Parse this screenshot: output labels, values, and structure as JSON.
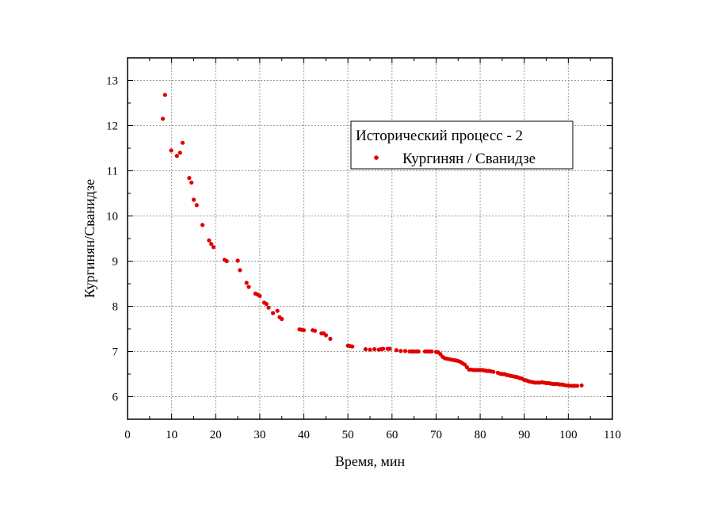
{
  "chart_data": {
    "type": "scatter",
    "title": "",
    "xlabel": "Время, мин",
    "ylabel": "Кургинян/Сванидзе",
    "xlim": [
      0,
      110
    ],
    "ylim": [
      5.5,
      13.5
    ],
    "x_ticks": [
      0,
      10,
      20,
      30,
      40,
      50,
      60,
      70,
      80,
      90,
      100,
      110
    ],
    "y_ticks": [
      6,
      7,
      8,
      9,
      10,
      11,
      12,
      13
    ],
    "grid": true,
    "legend_position": "top-right",
    "legend_title": "Исторический процесс - 2",
    "marker_color": "#e00000",
    "series": [
      {
        "name": "Кургинян / Сванидзе",
        "points": [
          [
            8.0,
            12.15
          ],
          [
            8.5,
            12.68
          ],
          [
            9.9,
            11.45
          ],
          [
            11.2,
            11.33
          ],
          [
            11.9,
            11.4
          ],
          [
            12.5,
            11.62
          ],
          [
            14.0,
            10.84
          ],
          [
            14.5,
            10.74
          ],
          [
            15.0,
            10.36
          ],
          [
            15.7,
            10.24
          ],
          [
            17.0,
            9.8
          ],
          [
            18.5,
            9.46
          ],
          [
            19.0,
            9.38
          ],
          [
            19.5,
            9.31
          ],
          [
            22.0,
            9.03
          ],
          [
            22.5,
            9.0
          ],
          [
            25.0,
            9.01
          ],
          [
            25.5,
            8.8
          ],
          [
            27.0,
            8.52
          ],
          [
            27.5,
            8.43
          ],
          [
            29.0,
            8.28
          ],
          [
            29.5,
            8.26
          ],
          [
            30.0,
            8.23
          ],
          [
            31.0,
            8.08
          ],
          [
            31.5,
            8.05
          ],
          [
            32.0,
            7.97
          ],
          [
            33.0,
            7.85
          ],
          [
            34.0,
            7.9
          ],
          [
            34.5,
            7.76
          ],
          [
            35.0,
            7.72
          ],
          [
            39.0,
            7.49
          ],
          [
            39.5,
            7.48
          ],
          [
            40.0,
            7.47
          ],
          [
            42.0,
            7.47
          ],
          [
            42.5,
            7.46
          ],
          [
            44.0,
            7.4
          ],
          [
            44.5,
            7.4
          ],
          [
            45.0,
            7.36
          ],
          [
            46.0,
            7.28
          ],
          [
            50.0,
            7.13
          ],
          [
            50.5,
            7.12
          ],
          [
            51.0,
            7.11
          ],
          [
            54.0,
            7.05
          ],
          [
            55.0,
            7.04
          ],
          [
            56.0,
            7.05
          ],
          [
            57.0,
            7.04
          ],
          [
            57.5,
            7.05
          ],
          [
            58.0,
            7.06
          ],
          [
            59.0,
            7.06
          ],
          [
            59.5,
            7.06
          ],
          [
            61.0,
            7.03
          ],
          [
            62.0,
            7.01
          ],
          [
            63.0,
            7.01
          ],
          [
            64.0,
            7.0
          ],
          [
            64.5,
            7.0
          ],
          [
            65.0,
            7.0
          ],
          [
            65.5,
            7.0
          ],
          [
            66.0,
            7.0
          ],
          [
            67.5,
            7.0
          ],
          [
            68.0,
            7.0
          ],
          [
            68.5,
            7.0
          ],
          [
            69.0,
            7.0
          ],
          [
            70.0,
            6.99
          ],
          [
            70.5,
            6.98
          ],
          [
            71.0,
            6.94
          ],
          [
            71.5,
            6.88
          ],
          [
            72.0,
            6.85
          ],
          [
            72.5,
            6.84
          ],
          [
            73.0,
            6.83
          ],
          [
            73.5,
            6.82
          ],
          [
            74.0,
            6.81
          ],
          [
            74.5,
            6.8
          ],
          [
            75.0,
            6.79
          ],
          [
            75.5,
            6.77
          ],
          [
            76.0,
            6.74
          ],
          [
            76.5,
            6.71
          ],
          [
            77.0,
            6.65
          ],
          [
            77.5,
            6.6
          ],
          [
            78.0,
            6.6
          ],
          [
            78.5,
            6.59
          ],
          [
            79.0,
            6.59
          ],
          [
            79.5,
            6.59
          ],
          [
            80.0,
            6.59
          ],
          [
            80.5,
            6.59
          ],
          [
            81.0,
            6.58
          ],
          [
            81.5,
            6.57
          ],
          [
            82.0,
            6.57
          ],
          [
            82.5,
            6.56
          ],
          [
            83.0,
            6.55
          ],
          [
            84.0,
            6.53
          ],
          [
            84.5,
            6.51
          ],
          [
            85.0,
            6.5
          ],
          [
            85.5,
            6.5
          ],
          [
            86.0,
            6.48
          ],
          [
            86.5,
            6.47
          ],
          [
            87.0,
            6.46
          ],
          [
            87.5,
            6.45
          ],
          [
            88.0,
            6.44
          ],
          [
            88.5,
            6.43
          ],
          [
            89.0,
            6.41
          ],
          [
            89.5,
            6.4
          ],
          [
            90.0,
            6.37
          ],
          [
            90.5,
            6.36
          ],
          [
            91.0,
            6.34
          ],
          [
            91.5,
            6.33
          ],
          [
            92.0,
            6.32
          ],
          [
            92.5,
            6.31
          ],
          [
            93.0,
            6.31
          ],
          [
            93.5,
            6.31
          ],
          [
            94.0,
            6.32
          ],
          [
            94.5,
            6.31
          ],
          [
            95.0,
            6.3
          ],
          [
            95.5,
            6.3
          ],
          [
            96.0,
            6.29
          ],
          [
            96.5,
            6.28
          ],
          [
            97.0,
            6.28
          ],
          [
            97.5,
            6.28
          ],
          [
            98.0,
            6.27
          ],
          [
            98.5,
            6.27
          ],
          [
            99.0,
            6.26
          ],
          [
            99.5,
            6.25
          ],
          [
            100.0,
            6.25
          ],
          [
            100.5,
            6.24
          ],
          [
            101.0,
            6.24
          ],
          [
            101.5,
            6.24
          ],
          [
            102.0,
            6.24
          ],
          [
            103.0,
            6.25
          ]
        ]
      }
    ]
  }
}
